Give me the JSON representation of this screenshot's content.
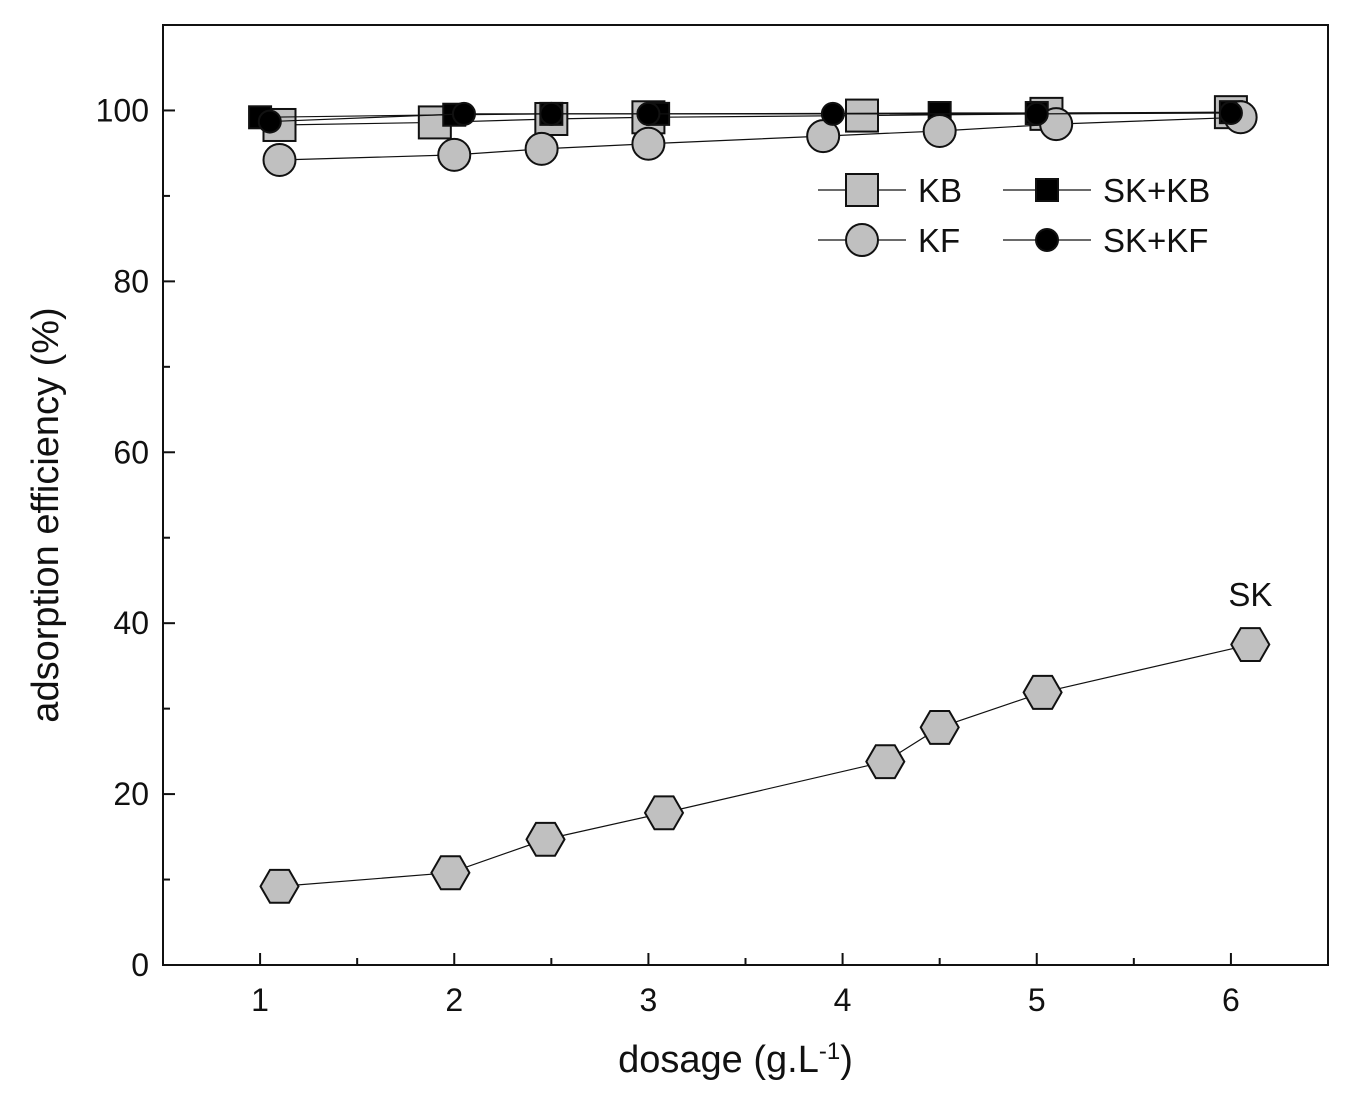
{
  "chart_data": {
    "type": "scatter",
    "title": "",
    "xlabel": "dosage (g.L",
    "xlabel_superscript": "-1",
    "xlabel_suffix": ")",
    "ylabel": "adsorption efficiency (%)",
    "xlim": [
      0.5,
      6.5
    ],
    "ylim": [
      0,
      110
    ],
    "x_ticks": [
      "1",
      "2",
      "3",
      "4",
      "5",
      "6"
    ],
    "y_ticks": [
      "0",
      "20",
      "40",
      "60",
      "80",
      "100"
    ],
    "grid": false,
    "legend_position": "top-right",
    "series": [
      {
        "name": "KB",
        "marker": "square",
        "fill": "#c0c0c0",
        "x": [
          1.1,
          1.9,
          2.5,
          3.0,
          4.1,
          5.05,
          6.0
        ],
        "y": [
          98.3,
          98.6,
          99.0,
          99.2,
          99.4,
          99.6,
          99.8
        ]
      },
      {
        "name": "SK+KB",
        "marker": "square",
        "fill": "#000000",
        "x": [
          1.0,
          2.0,
          2.5,
          3.05,
          4.5,
          5.0,
          6.0
        ],
        "y": [
          99.2,
          99.5,
          99.6,
          99.6,
          99.7,
          99.7,
          99.8
        ]
      },
      {
        "name": "KF",
        "marker": "circle",
        "fill": "#c0c0c0",
        "x": [
          1.1,
          2.0,
          2.45,
          3.0,
          3.9,
          4.5,
          5.1,
          6.05
        ],
        "y": [
          94.2,
          94.8,
          95.5,
          96.1,
          97.0,
          97.6,
          98.4,
          99.2
        ]
      },
      {
        "name": "SK+KF",
        "marker": "circle",
        "fill": "#000000",
        "x": [
          1.05,
          2.05,
          2.5,
          3.0,
          3.95,
          5.0,
          6.0
        ],
        "y": [
          98.7,
          99.6,
          99.6,
          99.6,
          99.6,
          99.6,
          99.7
        ]
      },
      {
        "name": "SK",
        "marker": "hexagon",
        "fill": "#c0c0c0",
        "x": [
          1.1,
          1.98,
          2.47,
          3.08,
          4.22,
          4.5,
          5.03,
          6.1
        ],
        "y": [
          9.2,
          10.8,
          14.7,
          17.8,
          23.8,
          27.8,
          31.9,
          37.5
        ]
      }
    ],
    "legend": [
      {
        "name": "KB",
        "label": "KB"
      },
      {
        "name": "SK+KB",
        "label": "SK+KB"
      },
      {
        "name": "KF",
        "label": "KF"
      },
      {
        "name": "SK+KF",
        "label": "SK+KF"
      }
    ],
    "annotations": [
      {
        "text": "SK",
        "x": 6.1,
        "y": 42.0
      }
    ]
  }
}
